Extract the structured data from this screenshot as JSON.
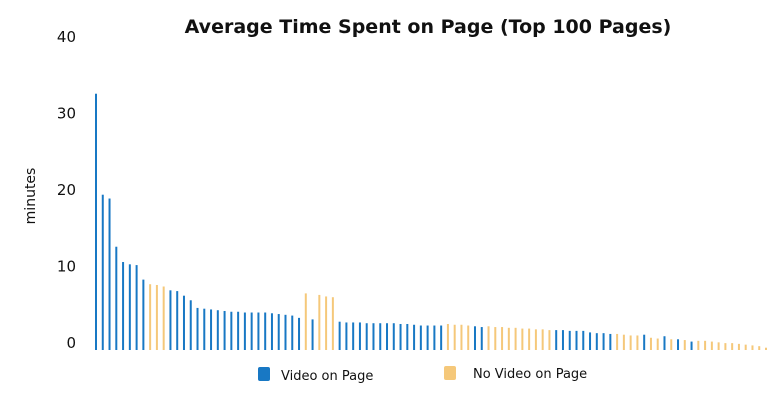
{
  "chart_data": {
    "type": "bar",
    "title": "Average Time Spent on Page (Top 100 Pages)",
    "xlabel": "",
    "ylabel": "minutes",
    "ylim": [
      0,
      40
    ],
    "yticks": [
      0,
      10,
      20,
      30,
      40
    ],
    "grid": false,
    "legend_position": "bottom",
    "legend": [
      {
        "key": "video",
        "label": "Video on Page",
        "color": "#1878c4"
      },
      {
        "key": "novideo",
        "label": "No Video on Page",
        "color": "#f5c87a"
      }
    ],
    "series": [
      {
        "name": "Video on Page",
        "key": "video",
        "color": "#1878c4",
        "x": [
          1,
          2,
          3,
          4,
          5,
          6,
          7,
          8,
          12,
          13,
          14,
          15,
          16,
          17,
          18,
          19,
          20,
          21,
          22,
          23,
          24,
          25,
          26,
          27,
          28,
          29,
          30,
          31,
          33,
          37,
          38,
          39,
          40,
          41,
          42,
          43,
          44,
          45,
          46,
          47,
          48,
          49,
          50,
          51,
          52,
          57,
          58,
          69,
          70,
          71,
          72,
          73,
          74,
          75,
          76,
          77,
          82,
          85,
          87,
          89
        ],
        "values": [
          33.5,
          20.3,
          19.8,
          13.5,
          11.5,
          11.2,
          11.1,
          9.2,
          7.8,
          7.7,
          7.1,
          6.5,
          5.5,
          5.4,
          5.3,
          5.2,
          5.1,
          5.0,
          5.0,
          4.9,
          4.9,
          4.9,
          4.9,
          4.8,
          4.7,
          4.6,
          4.5,
          4.2,
          4.0,
          3.7,
          3.6,
          3.6,
          3.6,
          3.5,
          3.5,
          3.5,
          3.5,
          3.5,
          3.4,
          3.4,
          3.3,
          3.2,
          3.2,
          3.2,
          3.2,
          3.1,
          3.0,
          2.6,
          2.6,
          2.5,
          2.5,
          2.5,
          2.3,
          2.2,
          2.2,
          2.1,
          2.0,
          1.8,
          1.4,
          1.1
        ]
      },
      {
        "name": "No Video on Page",
        "key": "novideo",
        "color": "#f5c87a",
        "x": [
          9,
          10,
          11,
          32,
          34,
          35,
          36,
          53,
          54,
          55,
          56,
          59,
          60,
          61,
          62,
          63,
          64,
          65,
          66,
          67,
          68,
          78,
          79,
          80,
          81,
          83,
          84,
          86,
          88,
          90,
          91,
          92,
          93,
          94,
          95,
          96,
          97,
          98,
          99,
          100
        ],
        "values": [
          8.6,
          8.5,
          8.3,
          7.4,
          7.2,
          7.0,
          6.9,
          3.4,
          3.3,
          3.3,
          3.2,
          3.1,
          3.0,
          3.0,
          2.9,
          2.9,
          2.8,
          2.8,
          2.7,
          2.7,
          2.6,
          2.1,
          2.0,
          1.9,
          1.9,
          1.6,
          1.5,
          1.4,
          1.3,
          1.2,
          1.2,
          1.1,
          1.0,
          0.9,
          0.9,
          0.8,
          0.7,
          0.6,
          0.5,
          0.3
        ]
      }
    ]
  }
}
